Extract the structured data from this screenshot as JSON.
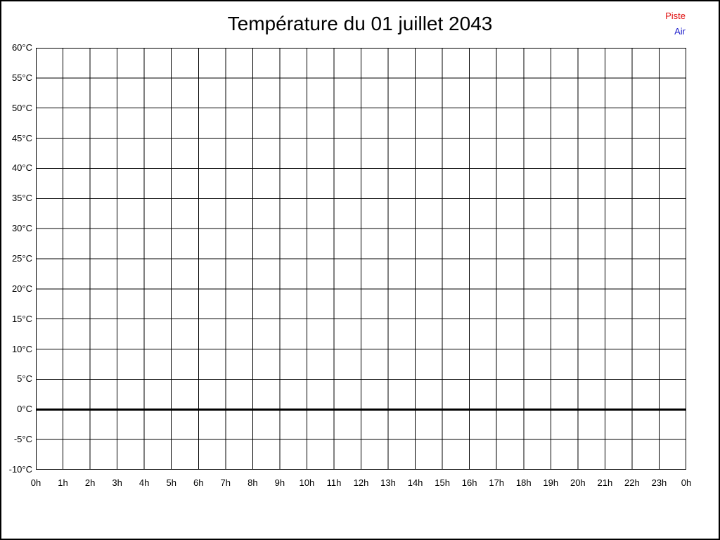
{
  "title": "Température du 01 juillet 2043",
  "legend": {
    "position": "top-right",
    "items": [
      {
        "label": "Piste",
        "color": "#e01010"
      },
      {
        "label": "Air",
        "color": "#2222cc"
      }
    ]
  },
  "colors": {
    "background": "#ffffff",
    "grid": "#000000",
    "border": "#000000",
    "text": "#000000"
  },
  "chart_data": {
    "type": "line",
    "title": "Température du 01 juillet 2043",
    "xlabel": "",
    "ylabel": "",
    "grid": true,
    "ylim": [
      -10,
      60
    ],
    "y_ticks": [
      60,
      55,
      50,
      45,
      40,
      35,
      30,
      25,
      20,
      15,
      10,
      5,
      0,
      -5,
      -10
    ],
    "y_tick_labels": [
      "60°C",
      "55°C",
      "50°C",
      "45°C",
      "40°C",
      "35°C",
      "30°C",
      "25°C",
      "20°C",
      "15°C",
      "10°C",
      "5°C",
      "0°C",
      "-5°C",
      "-10°C"
    ],
    "x_tick_labels": [
      "0h",
      "1h",
      "2h",
      "3h",
      "4h",
      "5h",
      "6h",
      "7h",
      "8h",
      "9h",
      "10h",
      "11h",
      "12h",
      "13h",
      "14h",
      "15h",
      "16h",
      "17h",
      "18h",
      "19h",
      "20h",
      "21h",
      "22h",
      "23h",
      "0h"
    ],
    "zero_line": {
      "value": 0,
      "color": "#000000",
      "width": 3
    },
    "series": [
      {
        "name": "Piste",
        "color": "#e01010",
        "values": []
      },
      {
        "name": "Air",
        "color": "#2222cc",
        "values": []
      }
    ],
    "legend_position": "top-right"
  }
}
